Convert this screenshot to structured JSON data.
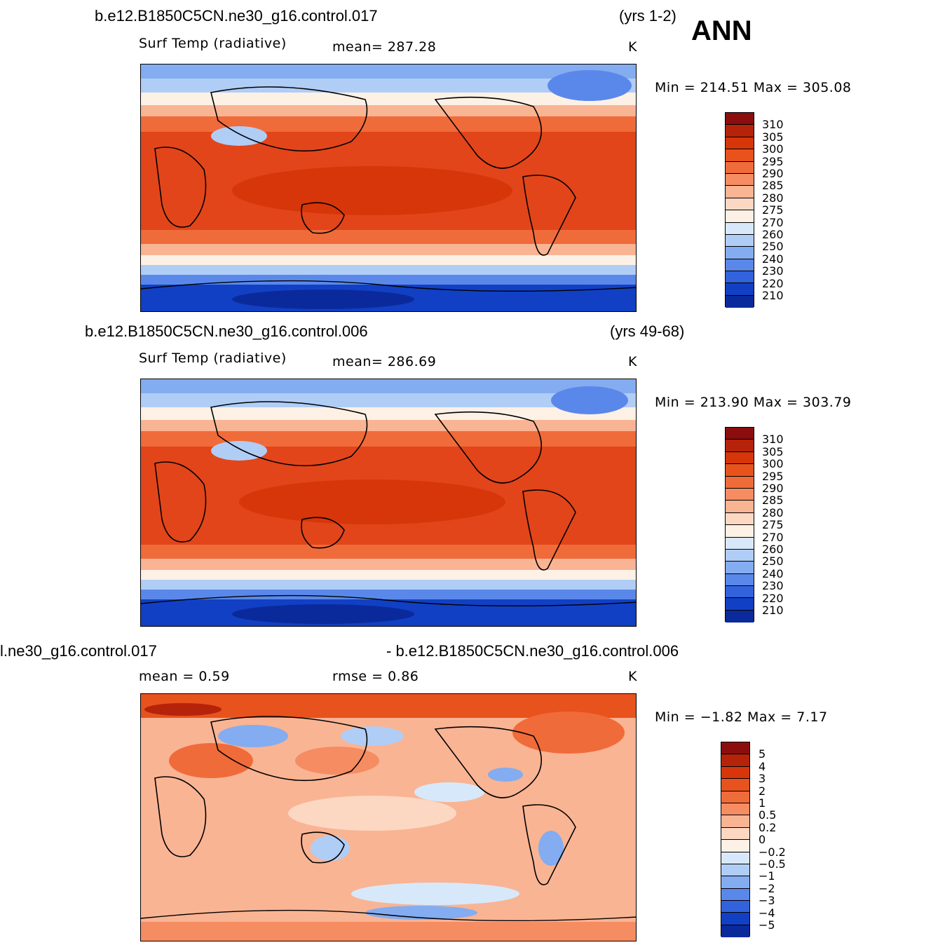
{
  "season": "ANN",
  "panels": [
    {
      "case": "b.e12.B1850C5CN.ne30_g16.control.017",
      "years": "(yrs 1-2)",
      "variable": "Surf Temp (radiative)",
      "stat1": "mean=  287.28",
      "units": "K",
      "minmax": "Min  =  214.51  Max  =  305.08"
    },
    {
      "case": "b.e12.B1850C5CN.ne30_g16.control.006",
      "years": "(yrs 49-68)",
      "variable": "Surf Temp (radiative)",
      "stat1": "mean=  286.69",
      "units": "K",
      "minmax": "Min  =  213.90  Max  =  303.79"
    },
    {
      "case": "l.ne30_g16.control.017",
      "case2": "- b.e12.B1850C5CN.ne30_g16.control.006",
      "stat1": "mean  =     0.59",
      "stat2": "rmse  =     0.86",
      "units": "K",
      "minmax": "Min  =    −1.82  Max  =     7.17"
    }
  ],
  "colorbar_abs": {
    "labels": [
      "310",
      "305",
      "300",
      "295",
      "290",
      "285",
      "280",
      "275",
      "270",
      "260",
      "250",
      "240",
      "230",
      "220",
      "210"
    ],
    "colors": [
      "#8c0d0d",
      "#b5230a",
      "#d7360a",
      "#e8521c",
      "#f06b3a",
      "#f58c62",
      "#f9b494",
      "#fcd8c2",
      "#fdf1e6",
      "#d8e8fb",
      "#b0cdf6",
      "#84acf0",
      "#5a88ea",
      "#3263dc",
      "#1240c4",
      "#0a2a9c"
    ]
  },
  "colorbar_diff": {
    "labels": [
      "5",
      "4",
      "3",
      "2",
      "1",
      "0.5",
      "0.2",
      "0",
      "−0.2",
      "−0.5",
      "−1",
      "−2",
      "−3",
      "−4",
      "−5"
    ],
    "colors": [
      "#8c0d0d",
      "#b5230a",
      "#d7360a",
      "#e8521c",
      "#f06b3a",
      "#f58c62",
      "#f9b494",
      "#fcd8c2",
      "#fdf1e6",
      "#d8e8fb",
      "#b0cdf6",
      "#84acf0",
      "#5a88ea",
      "#3263dc",
      "#1240c4",
      "#0a2a9c"
    ]
  }
}
